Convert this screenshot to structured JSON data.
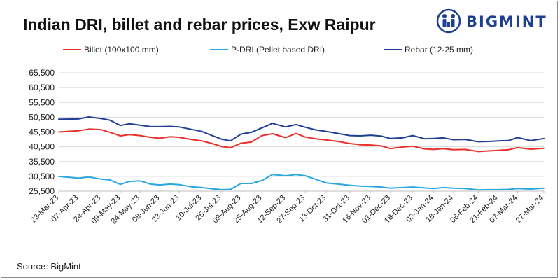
{
  "title": "Indian DRI, billet and rebar prices, Exw Raipur",
  "source": "Source: BigMint",
  "logo": {
    "text": "BIGMINT",
    "icon": "bigmint-people-icon",
    "color": "#1f3f93"
  },
  "chart_data": {
    "type": "line",
    "title": "Indian DRI, billet and rebar prices, Exw Raipur",
    "xlabel": "",
    "ylabel": "",
    "ylim": [
      25500,
      65500
    ],
    "yticks": [
      25500,
      30500,
      35500,
      40500,
      45500,
      50500,
      55500,
      60500,
      65500
    ],
    "ytick_labels": [
      "25,500",
      "30,500",
      "35,500",
      "40,500",
      "45,500",
      "50,500",
      "55,500",
      "60,500",
      "65,500"
    ],
    "xlim": [
      "23-Mar-23",
      "27-Mar-24"
    ],
    "x_tick_labels": [
      "23-Mar-23",
      "07-Apr-23",
      "24-Apr-23",
      "09-May-23",
      "24-May-23",
      "08-Jun-23",
      "23-Jun-23",
      "10-Jul-23",
      "25-Jul-23",
      "09-Aug-23",
      "25-Aug-23",
      "12-Sep-23",
      "27-Sep-23",
      "13-Oct-23",
      "31-Oct-23",
      "16-Nov-23",
      "01-Dec-23",
      "18-Dec-23",
      "03-Jan-24",
      "18-Jan-24",
      "06-Feb-24",
      "21-Feb-24",
      "07-Mar-24",
      "27-Mar-24"
    ],
    "grid": {
      "horizontal": true,
      "vertical": false
    },
    "legend_position": "top",
    "series": [
      {
        "name": "Billet (100x100 mm)",
        "color": "#e8302c",
        "points": [
          [
            "23-Mar-23",
            45500
          ],
          [
            "07-Apr-23",
            45900
          ],
          [
            "15-Apr-23",
            46500
          ],
          [
            "24-Apr-23",
            46300
          ],
          [
            "01-May-23",
            45400
          ],
          [
            "09-May-23",
            44200
          ],
          [
            "16-May-23",
            44600
          ],
          [
            "24-May-23",
            44300
          ],
          [
            "01-Jun-23",
            43700
          ],
          [
            "08-Jun-23",
            43400
          ],
          [
            "16-Jun-23",
            43900
          ],
          [
            "23-Jun-23",
            43700
          ],
          [
            "02-Jul-23",
            43000
          ],
          [
            "10-Jul-23",
            42500
          ],
          [
            "18-Jul-23",
            41600
          ],
          [
            "25-Jul-23",
            40600
          ],
          [
            "01-Aug-23",
            40200
          ],
          [
            "09-Aug-23",
            41700
          ],
          [
            "17-Aug-23",
            42100
          ],
          [
            "25-Aug-23",
            44300
          ],
          [
            "02-Sep-23",
            44900
          ],
          [
            "12-Sep-23",
            43600
          ],
          [
            "20-Sep-23",
            45000
          ],
          [
            "27-Sep-23",
            43800
          ],
          [
            "05-Oct-23",
            43200
          ],
          [
            "13-Oct-23",
            42800
          ],
          [
            "22-Oct-23",
            42300
          ],
          [
            "31-Oct-23",
            41600
          ],
          [
            "08-Nov-23",
            41200
          ],
          [
            "16-Nov-23",
            41100
          ],
          [
            "24-Nov-23",
            40800
          ],
          [
            "01-Dec-23",
            39900
          ],
          [
            "10-Dec-23",
            40400
          ],
          [
            "18-Dec-23",
            40700
          ],
          [
            "27-Dec-23",
            39800
          ],
          [
            "03-Jan-24",
            39600
          ],
          [
            "10-Jan-24",
            39900
          ],
          [
            "18-Jan-24",
            39500
          ],
          [
            "27-Jan-24",
            39600
          ],
          [
            "06-Feb-24",
            38900
          ],
          [
            "14-Feb-24",
            39100
          ],
          [
            "21-Feb-24",
            39300
          ],
          [
            "29-Feb-24",
            39500
          ],
          [
            "07-Mar-24",
            40200
          ],
          [
            "17-Mar-24",
            39700
          ],
          [
            "27-Mar-24",
            40000
          ]
        ]
      },
      {
        "name": "P-DRI (Pellet based DRI)",
        "color": "#2aa6e0",
        "points": [
          [
            "23-Mar-23",
            30500
          ],
          [
            "07-Apr-23",
            29900
          ],
          [
            "15-Apr-23",
            30300
          ],
          [
            "24-Apr-23",
            29600
          ],
          [
            "01-May-23",
            29300
          ],
          [
            "09-May-23",
            27800
          ],
          [
            "16-May-23",
            28800
          ],
          [
            "24-May-23",
            29000
          ],
          [
            "01-Jun-23",
            27900
          ],
          [
            "08-Jun-23",
            27600
          ],
          [
            "16-Jun-23",
            27900
          ],
          [
            "23-Jun-23",
            27700
          ],
          [
            "02-Jul-23",
            27000
          ],
          [
            "10-Jul-23",
            26700
          ],
          [
            "18-Jul-23",
            26300
          ],
          [
            "25-Jul-23",
            26000
          ],
          [
            "01-Aug-23",
            26100
          ],
          [
            "09-Aug-23",
            28100
          ],
          [
            "17-Aug-23",
            28100
          ],
          [
            "25-Aug-23",
            29100
          ],
          [
            "02-Sep-23",
            31100
          ],
          [
            "12-Sep-23",
            30700
          ],
          [
            "20-Sep-23",
            31100
          ],
          [
            "27-Sep-23",
            30700
          ],
          [
            "05-Oct-23",
            29500
          ],
          [
            "13-Oct-23",
            28300
          ],
          [
            "22-Oct-23",
            27900
          ],
          [
            "31-Oct-23",
            27500
          ],
          [
            "08-Nov-23",
            27200
          ],
          [
            "16-Nov-23",
            27100
          ],
          [
            "24-Nov-23",
            26900
          ],
          [
            "01-Dec-23",
            26500
          ],
          [
            "10-Dec-23",
            26700
          ],
          [
            "18-Dec-23",
            26900
          ],
          [
            "27-Dec-23",
            26600
          ],
          [
            "03-Jan-24",
            26400
          ],
          [
            "10-Jan-24",
            26700
          ],
          [
            "18-Jan-24",
            26500
          ],
          [
            "27-Jan-24",
            26400
          ],
          [
            "06-Feb-24",
            25900
          ],
          [
            "14-Feb-24",
            26000
          ],
          [
            "21-Feb-24",
            26000
          ],
          [
            "29-Feb-24",
            26100
          ],
          [
            "07-Mar-24",
            26400
          ],
          [
            "17-Mar-24",
            26200
          ],
          [
            "27-Mar-24",
            26500
          ]
        ]
      },
      {
        "name": "Rebar (12-25 mm)",
        "color": "#1f3f93",
        "points": [
          [
            "23-Mar-23",
            49800
          ],
          [
            "07-Apr-23",
            49900
          ],
          [
            "15-Apr-23",
            50600
          ],
          [
            "24-Apr-23",
            50100
          ],
          [
            "01-May-23",
            49500
          ],
          [
            "09-May-23",
            47700
          ],
          [
            "16-May-23",
            48300
          ],
          [
            "24-May-23",
            47800
          ],
          [
            "01-Jun-23",
            47300
          ],
          [
            "08-Jun-23",
            47300
          ],
          [
            "16-Jun-23",
            47400
          ],
          [
            "23-Jun-23",
            47200
          ],
          [
            "02-Jul-23",
            46400
          ],
          [
            "10-Jul-23",
            45700
          ],
          [
            "18-Jul-23",
            44300
          ],
          [
            "25-Jul-23",
            43100
          ],
          [
            "01-Aug-23",
            42500
          ],
          [
            "09-Aug-23",
            44800
          ],
          [
            "17-Aug-23",
            45400
          ],
          [
            "25-Aug-23",
            46900
          ],
          [
            "02-Sep-23",
            48400
          ],
          [
            "12-Sep-23",
            47200
          ],
          [
            "20-Sep-23",
            48000
          ],
          [
            "27-Sep-23",
            47100
          ],
          [
            "05-Oct-23",
            46200
          ],
          [
            "13-Oct-23",
            45700
          ],
          [
            "22-Oct-23",
            45000
          ],
          [
            "31-Oct-23",
            44300
          ],
          [
            "08-Nov-23",
            44200
          ],
          [
            "16-Nov-23",
            44400
          ],
          [
            "24-Nov-23",
            44100
          ],
          [
            "01-Dec-23",
            43300
          ],
          [
            "10-Dec-23",
            43500
          ],
          [
            "18-Dec-23",
            44300
          ],
          [
            "27-Dec-23",
            43200
          ],
          [
            "03-Jan-24",
            43300
          ],
          [
            "10-Jan-24",
            43500
          ],
          [
            "18-Jan-24",
            42900
          ],
          [
            "27-Jan-24",
            43000
          ],
          [
            "06-Feb-24",
            42200
          ],
          [
            "14-Feb-24",
            42300
          ],
          [
            "21-Feb-24",
            42500
          ],
          [
            "29-Feb-24",
            42600
          ],
          [
            "07-Mar-24",
            43600
          ],
          [
            "17-Mar-24",
            42600
          ],
          [
            "27-Mar-24",
            43300
          ]
        ]
      }
    ]
  }
}
